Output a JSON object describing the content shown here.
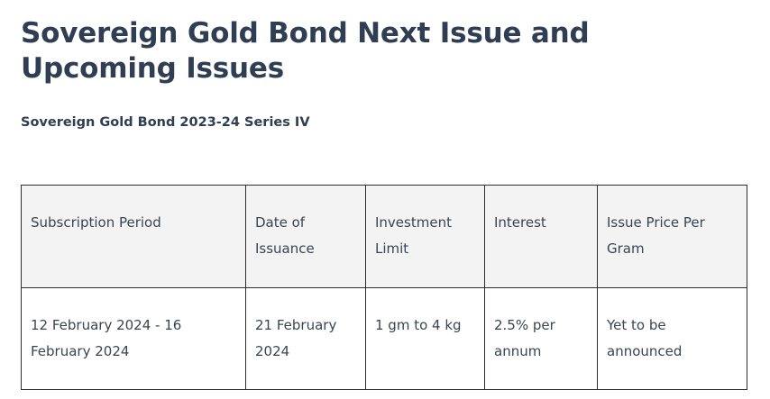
{
  "page": {
    "title": "Sovereign Gold Bond Next Issue and Upcoming Issues",
    "subtitle": "Sovereign Gold Bond 2023-24 Series IV"
  },
  "table": {
    "headers": [
      "Subscription Period",
      "Date of Issuance",
      "Investment Limit",
      "Interest",
      "Issue Price Per Gram"
    ],
    "rows": [
      [
        "12 February 2024 - 16 February 2024",
        "21 February 2024",
        "1 gm to 4 kg",
        "2.5% per annum",
        "Yet to be announced"
      ]
    ]
  },
  "colors": {
    "text": "#2f3e52",
    "header_background": "#f3f3f3",
    "border": "#2e2e2e"
  }
}
